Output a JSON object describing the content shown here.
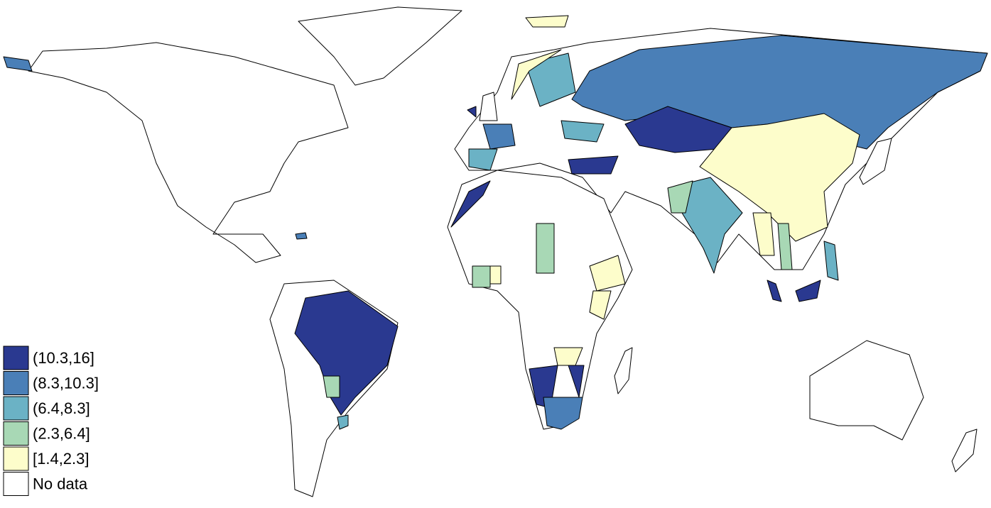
{
  "legend": {
    "items": [
      {
        "label": "(10.3,16]",
        "color": "#2a3990"
      },
      {
        "label": "(8.3,10.3]",
        "color": "#4a7fb7"
      },
      {
        "label": "(6.4,8.3]",
        "color": "#6bb2c5"
      },
      {
        "label": "(2.3,6.4]",
        "color": "#a8d8b5"
      },
      {
        "label": "[1.4,2.3]",
        "color": "#fdfdcb"
      },
      {
        "label": "No data",
        "color": "#ffffff"
      }
    ]
  }
}
